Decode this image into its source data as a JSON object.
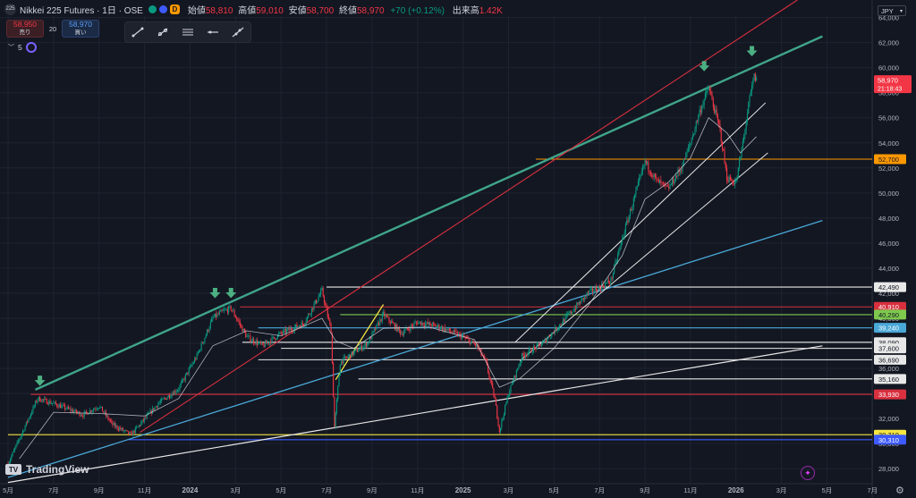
{
  "header": {
    "logo_text": "225",
    "symbol": "Nikkei 225 Futures · 1日 · OSE",
    "interval_badge": "D",
    "open_label": "始値",
    "open": "58,810",
    "high_label": "高値",
    "high": "59,010",
    "low_label": "安値",
    "low": "58,700",
    "close_label": "終値",
    "close": "58,970",
    "change": "+70 (+0.12%)",
    "volume_label": "出来高",
    "volume": "1.42K"
  },
  "trade": {
    "sell_price": "58,950",
    "sell_label": "売り",
    "spread": "20",
    "buy_price": "58,970",
    "buy_label": "買い"
  },
  "indicator": {
    "label": "5"
  },
  "toolbar": {
    "tools": [
      "trend-line-tool",
      "ray-tool",
      "parallel-channel-tool",
      "horizontal-line-tool",
      "extended-line-tool"
    ]
  },
  "currency": "JPY",
  "brand": "TradingView",
  "colors": {
    "bg": "#131722",
    "grid": "#1f2330",
    "axis_text": "#b2b5be",
    "up": "#089981",
    "down": "#f23645",
    "ma": "#e0e3eb",
    "teal": "#3fa58a",
    "red": "#d9303f",
    "cyan": "#4aa8d8",
    "white": "#e8e8e8",
    "orange": "#ff9800",
    "yellow": "#f5e642",
    "green_h": "#7ec84e",
    "blue_h": "#3d5afe",
    "arrow": "#4caf82"
  },
  "chart_data": {
    "type": "candlestick",
    "y_axis_labels": [
      "64,000",
      "62,000",
      "60,000",
      "58,000",
      "56,000",
      "54,000",
      "52,000",
      "50,000",
      "48,000",
      "46,000",
      "44,000",
      "42,000",
      "40,000",
      "38,000",
      "36,000",
      "34,000",
      "32,000",
      "30,000",
      "28,000"
    ],
    "ylim": [
      26800,
      65400
    ],
    "x_axis_labels": [
      "5月",
      "7月",
      "9月",
      "11月",
      "2024",
      "3月",
      "5月",
      "7月",
      "9月",
      "11月",
      "2025",
      "3月",
      "5月",
      "7月",
      "9月",
      "11月",
      "2026",
      "3月",
      "5月",
      "7月"
    ],
    "bold_x_labels": [
      "2024",
      "2025",
      "2026"
    ],
    "last_price": {
      "value": 58970,
      "label": "58,970",
      "countdown": "21:18:43"
    },
    "price_levels": [
      {
        "value": 52700,
        "label": "52,700",
        "color": "#ff9800",
        "start_month": 23.2
      },
      {
        "value": 42490,
        "label": "42,490",
        "color": "#e8e8e8",
        "start_month": 14.0
      },
      {
        "value": 40910,
        "label": "40,910",
        "color": "#d9303f",
        "start_month": 10.2
      },
      {
        "value": 40290,
        "label": "40,290",
        "color": "#7ec84e",
        "start_month": 14.6
      },
      {
        "value": 39240,
        "label": "39,240",
        "color": "#4aa8d8",
        "start_month": 11.0
      },
      {
        "value": 38090,
        "label": "38,090",
        "color": "#e8e8e8",
        "start_month": 10.3
      },
      {
        "value": 37600,
        "label": "37,600",
        "color": "#e8e8e8",
        "start_month": 12.0
      },
      {
        "value": 36690,
        "label": "36,690",
        "color": "#e8e8e8",
        "start_month": 11.0
      },
      {
        "value": 35160,
        "label": "35,160",
        "color": "#e8e8e8",
        "start_month": 15.4
      },
      {
        "value": 33930,
        "label": "33,930",
        "color": "#d9303f",
        "start_month": 1.0
      },
      {
        "value": 30710,
        "label": "30,710",
        "color": "#f5e642",
        "start_month": 0.0
      },
      {
        "value": 30310,
        "label": "30,310",
        "color": "#3d5afe",
        "start_month": 5.3
      }
    ],
    "trend_lines": [
      {
        "name": "teal-resistance",
        "color": "#3fa58a",
        "width": 2.4,
        "from": [
          1.2,
          34300
        ],
        "to": [
          35.8,
          62500
        ]
      },
      {
        "name": "red-trend",
        "color": "#d9303f",
        "width": 1.1,
        "from": [
          5.8,
          30900
        ],
        "to": [
          34.7,
          65400
        ]
      },
      {
        "name": "cyan-trend",
        "color": "#4aa8d8",
        "width": 1.3,
        "from": [
          0.0,
          27300
        ],
        "to": [
          35.8,
          47800
        ]
      },
      {
        "name": "white-long",
        "color": "#e8e8e8",
        "width": 1.2,
        "from": [
          0.0,
          26900
        ],
        "to": [
          35.8,
          37800
        ]
      },
      {
        "name": "channel-upper",
        "color": "#e8e8e8",
        "width": 1.0,
        "from": [
          22.3,
          38100
        ],
        "to": [
          33.3,
          57200
        ]
      },
      {
        "name": "channel-lower",
        "color": "#e8e8e8",
        "width": 1.0,
        "from": [
          22.5,
          36600
        ],
        "to": [
          33.4,
          53200
        ]
      },
      {
        "name": "yellow-flag",
        "color": "#f5e642",
        "width": 1.3,
        "from": [
          14.4,
          35100
        ],
        "to": [
          16.5,
          41100
        ]
      }
    ],
    "arrows": [
      [
        1.4,
        34500
      ],
      [
        9.1,
        41500
      ],
      [
        9.8,
        41500
      ],
      [
        30.6,
        59600
      ],
      [
        32.7,
        60800
      ]
    ],
    "anchors": [
      [
        0,
        28400
      ],
      [
        1.3,
        33600
      ],
      [
        2.0,
        33200
      ],
      [
        3.3,
        32300
      ],
      [
        4.0,
        33000
      ],
      [
        4.6,
        31500
      ],
      [
        5.4,
        30700
      ],
      [
        6.6,
        33200
      ],
      [
        7.5,
        34400
      ],
      [
        8.3,
        37000
      ],
      [
        9.0,
        40000
      ],
      [
        9.4,
        40500
      ],
      [
        9.8,
        40800
      ],
      [
        10.5,
        38500
      ],
      [
        11.2,
        37800
      ],
      [
        12.0,
        38800
      ],
      [
        13.0,
        39600
      ],
      [
        13.8,
        42200
      ],
      [
        14.2,
        39000
      ],
      [
        14.35,
        31300
      ],
      [
        14.6,
        36500
      ],
      [
        15.0,
        37000
      ],
      [
        15.8,
        38000
      ],
      [
        16.5,
        40300
      ],
      [
        17.3,
        38800
      ],
      [
        18.0,
        39700
      ],
      [
        19.0,
        39300
      ],
      [
        20.0,
        38500
      ],
      [
        20.6,
        37800
      ],
      [
        21.0,
        36500
      ],
      [
        21.4,
        33500
      ],
      [
        21.6,
        31000
      ],
      [
        22.0,
        34000
      ],
      [
        22.6,
        37000
      ],
      [
        23.5,
        38000
      ],
      [
        24.5,
        40000
      ],
      [
        25.5,
        42000
      ],
      [
        26.5,
        43000
      ],
      [
        27.1,
        47000
      ],
      [
        27.6,
        50000
      ],
      [
        28.0,
        52500
      ],
      [
        28.5,
        51000
      ],
      [
        29.0,
        50300
      ],
      [
        29.6,
        52000
      ],
      [
        30.0,
        54000
      ],
      [
        30.4,
        56500
      ],
      [
        30.8,
        58400
      ],
      [
        31.0,
        57000
      ],
      [
        31.3,
        55000
      ],
      [
        31.6,
        51200
      ],
      [
        32.0,
        50800
      ],
      [
        32.3,
        54000
      ],
      [
        32.6,
        57500
      ],
      [
        32.8,
        59300
      ],
      [
        32.9,
        58970
      ]
    ],
    "ma_anchors": [
      [
        0.5,
        28800
      ],
      [
        2.0,
        32500
      ],
      [
        4.0,
        32400
      ],
      [
        6.0,
        32200
      ],
      [
        7.5,
        33600
      ],
      [
        9.0,
        37800
      ],
      [
        10.5,
        39000
      ],
      [
        12.0,
        38600
      ],
      [
        13.8,
        40000
      ],
      [
        14.4,
        38200
      ],
      [
        15.2,
        37600
      ],
      [
        16.5,
        39200
      ],
      [
        18.5,
        39300
      ],
      [
        20.5,
        38300
      ],
      [
        21.6,
        34500
      ],
      [
        22.5,
        35200
      ],
      [
        24.0,
        37600
      ],
      [
        25.5,
        41000
      ],
      [
        27.0,
        45000
      ],
      [
        28.0,
        49500
      ],
      [
        29.0,
        50800
      ],
      [
        30.0,
        52800
      ],
      [
        30.8,
        56000
      ],
      [
        31.6,
        54800
      ],
      [
        32.2,
        53200
      ],
      [
        32.9,
        54500
      ]
    ]
  }
}
